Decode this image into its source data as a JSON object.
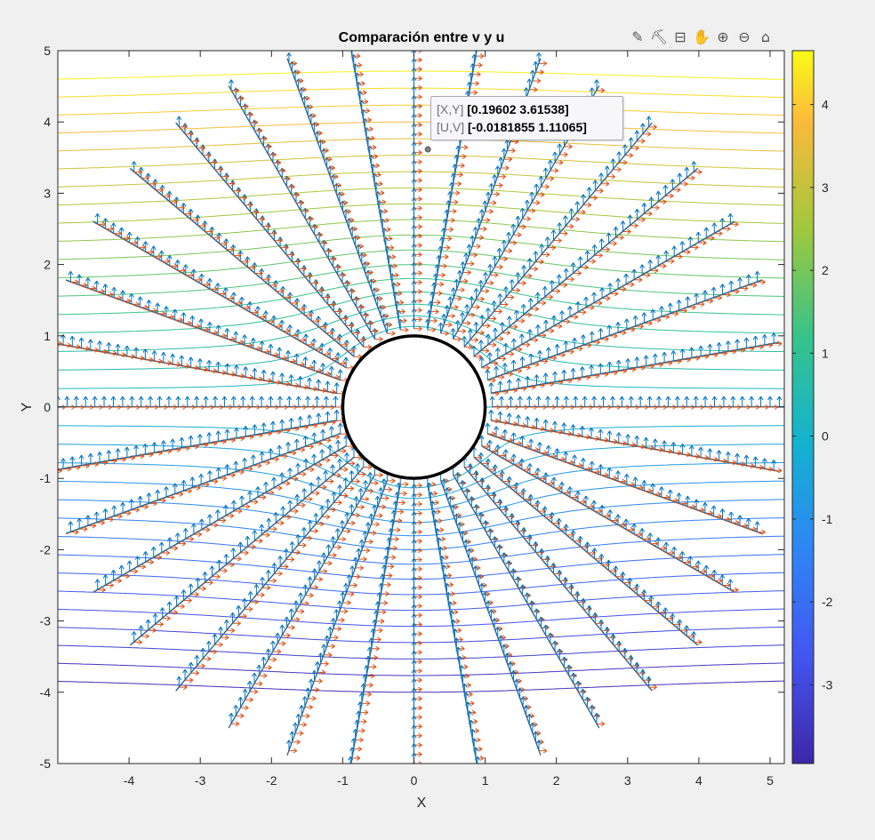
{
  "toolbar": {
    "icons": [
      "edit-icon",
      "brush-icon",
      "datatip-icon",
      "pan-icon",
      "zoom-in-icon",
      "zoom-out-icon",
      "home-icon"
    ],
    "glyphs": [
      "✎",
      "⛏",
      "⊟",
      "✋",
      "⊕",
      "⊖",
      "⌂"
    ]
  },
  "datatip": {
    "xy_key": "[X,Y]",
    "xy_val": "[0.19602 3.61538]",
    "uv_key": "[U,V]",
    "uv_val": "[-0.0181855 1.11065]",
    "point": [
      0.19602,
      3.61538
    ]
  },
  "colors": {
    "figure_bg": "#f0f0f0",
    "axes_bg": "#ffffff",
    "quiver_v": "#0072bd",
    "quiver_u": "#d95319",
    "cylinder": "#000000"
  },
  "chart_data": {
    "type": "streamline-quiver",
    "title": "Comparación entre v y u",
    "xlabel": "X",
    "ylabel": "Y",
    "xlim": [
      -5,
      5.2
    ],
    "ylim": [
      -5,
      5
    ],
    "xticks": [
      -4,
      -3,
      -2,
      -1,
      0,
      1,
      2,
      3,
      4,
      5
    ],
    "yticks": [
      5,
      4,
      3,
      2,
      1,
      0,
      -1,
      -2,
      -3,
      -4,
      -5
    ],
    "cylinder_radius": 1,
    "freestream_U": 1,
    "stream_levels": [
      -3.75,
      -3.5,
      -3.25,
      -3,
      -2.75,
      -2.5,
      -2.25,
      -2,
      -1.75,
      -1.5,
      -1.25,
      -1,
      -0.75,
      -0.5,
      -0.25,
      0,
      0.25,
      0.5,
      0.75,
      1,
      1.25,
      1.5,
      1.75,
      2,
      2.25,
      2.5,
      2.75,
      3,
      3.25,
      3.5,
      3.75,
      4,
      4.25,
      4.5
    ],
    "radial_rays": 36,
    "ray_radius": [
      1.1,
      5.2
    ],
    "colormap": "parula",
    "colorbar": {
      "ticks": [
        4,
        3,
        2,
        1,
        0,
        -1,
        -2,
        -3
      ],
      "range": [
        -3.95,
        4.65
      ]
    },
    "legend": "none",
    "grid": "off"
  }
}
